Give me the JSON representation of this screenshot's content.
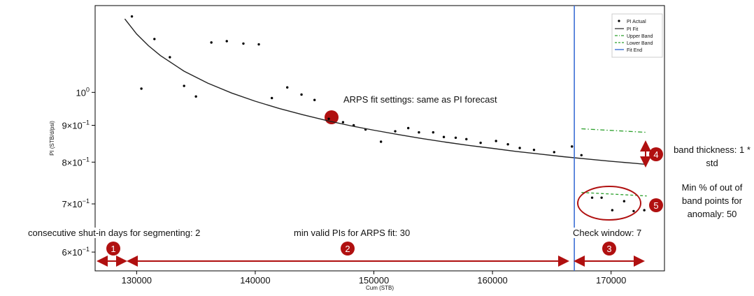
{
  "chart_data": {
    "type": "scatter",
    "xlabel": "Cum (STB)",
    "ylabel": "PI (STB/d/psi)",
    "xlim": [
      126500,
      174500
    ],
    "ylim": [
      0.565,
      1.32
    ],
    "yscale": "log",
    "grid": false,
    "legend_position": "top-right",
    "x_ticks": [
      {
        "value": 130000,
        "label": "130000"
      },
      {
        "value": 140000,
        "label": "140000"
      },
      {
        "value": 150000,
        "label": "150000"
      },
      {
        "value": 160000,
        "label": "160000"
      },
      {
        "value": 170000,
        "label": "170000"
      }
    ],
    "y_ticks": [
      {
        "value": 1.0,
        "label": "10^0"
      },
      {
        "value": 0.9,
        "label": "9×10^-1"
      },
      {
        "value": 0.8,
        "label": "8×10^-1"
      },
      {
        "value": 0.7,
        "label": "7×10^-1"
      },
      {
        "value": 0.6,
        "label": "6×10^-1"
      }
    ],
    "legend": [
      "PI Actual",
      "PI Fit",
      "Upper Band",
      "Lower Band",
      "Fit End"
    ],
    "colors": {
      "actual": "#000000",
      "fit": "#222222",
      "upper_band": "#2ca02c",
      "lower_band": "#2ca02c",
      "fit_end": "#3b6fd4",
      "annotation": "#b01010"
    },
    "series": [
      {
        "name": "PI Actual",
        "style": "points",
        "points": [
          [
            129600,
            1.275
          ],
          [
            130400,
            1.012
          ],
          [
            131500,
            1.186
          ],
          [
            132800,
            1.119
          ],
          [
            134000,
            1.021
          ],
          [
            135000,
            0.987
          ],
          [
            136300,
            1.173
          ],
          [
            137600,
            1.178
          ],
          [
            139000,
            1.169
          ],
          [
            140300,
            1.166
          ],
          [
            141400,
            0.982
          ],
          [
            142700,
            1.016
          ],
          [
            143900,
            0.993
          ],
          [
            145000,
            0.976
          ],
          [
            146200,
            0.919
          ],
          [
            147400,
            0.909
          ],
          [
            148300,
            0.9
          ],
          [
            149300,
            0.888
          ],
          [
            150600,
            0.854
          ],
          [
            151800,
            0.883
          ],
          [
            152900,
            0.892
          ],
          [
            153800,
            0.88
          ],
          [
            155000,
            0.88
          ],
          [
            155900,
            0.867
          ],
          [
            156900,
            0.865
          ],
          [
            157800,
            0.861
          ],
          [
            159000,
            0.851
          ],
          [
            160300,
            0.856
          ],
          [
            161300,
            0.847
          ],
          [
            162300,
            0.837
          ],
          [
            163500,
            0.832
          ],
          [
            165200,
            0.826
          ],
          [
            166700,
            0.841
          ],
          [
            167500,
            0.818
          ],
          [
            168400,
            0.714
          ],
          [
            169200,
            0.714
          ],
          [
            170100,
            0.686
          ],
          [
            171100,
            0.706
          ],
          [
            171900,
            0.684
          ],
          [
            172800,
            0.686
          ]
        ]
      },
      {
        "name": "PI Fit",
        "style": "line",
        "points": [
          [
            129000,
            1.265
          ],
          [
            130000,
            1.205
          ],
          [
            131000,
            1.161
          ],
          [
            132000,
            1.125
          ],
          [
            134000,
            1.07
          ],
          [
            136000,
            1.03
          ],
          [
            138000,
            0.998
          ],
          [
            140000,
            0.972
          ],
          [
            142000,
            0.95
          ],
          [
            144000,
            0.931
          ],
          [
            146000,
            0.914
          ],
          [
            148000,
            0.899
          ],
          [
            150000,
            0.886
          ],
          [
            152000,
            0.874
          ],
          [
            154000,
            0.863
          ],
          [
            156000,
            0.853
          ],
          [
            158000,
            0.844
          ],
          [
            160000,
            0.836
          ],
          [
            162000,
            0.828
          ],
          [
            164000,
            0.821
          ],
          [
            166000,
            0.814
          ],
          [
            168000,
            0.808
          ],
          [
            170000,
            0.802
          ],
          [
            172000,
            0.797
          ],
          [
            173000,
            0.794
          ]
        ]
      },
      {
        "name": "Upper Band",
        "style": "dashdot",
        "points": [
          [
            167500,
            0.89
          ],
          [
            173000,
            0.88
          ]
        ]
      },
      {
        "name": "Lower Band",
        "style": "dashed",
        "points": [
          [
            167500,
            0.726
          ],
          [
            173000,
            0.718
          ]
        ]
      },
      {
        "name": "Fit End",
        "style": "vline",
        "x": 166900
      }
    ],
    "annotations": {
      "fit_settings": "ARPS fit settings: same as PI forecast",
      "segment_label": "consecutive shut-in days for segmenting: 2",
      "min_valid_label": "min valid PIs for ARPS fit: 30",
      "check_window_label": "Check window: 7",
      "band_thickness_label": "band thickness: 1 * std",
      "min_pct_label": "Min % of out of band points for anomaly: 50",
      "badges": [
        "1",
        "2",
        "3",
        "4",
        "5"
      ]
    }
  }
}
